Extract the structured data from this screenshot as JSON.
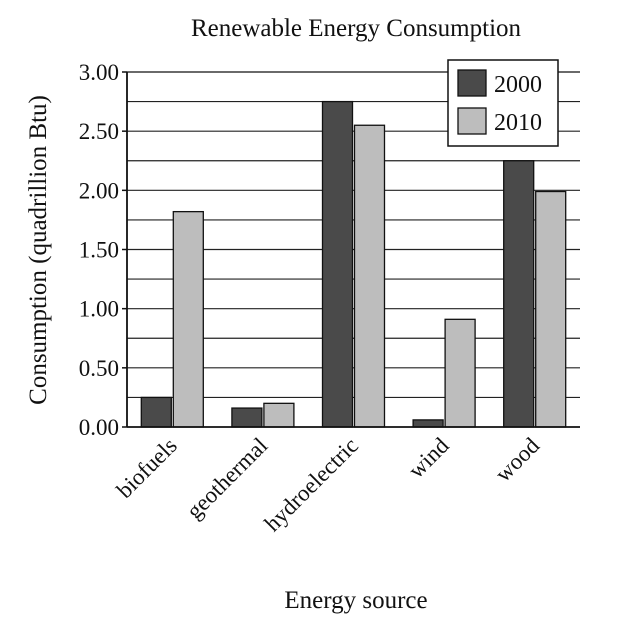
{
  "chart_data": {
    "type": "bar",
    "title": "Renewable Energy Consumption",
    "xlabel": "Energy source",
    "ylabel": "Consumption (quadrillion Btu)",
    "categories": [
      "biofuels",
      "geothermal",
      "hydroelectric",
      "wind",
      "wood"
    ],
    "series": [
      {
        "name": "2000",
        "values": [
          0.25,
          0.16,
          2.75,
          0.06,
          2.25
        ],
        "color": "#4a4a4a"
      },
      {
        "name": "2010",
        "values": [
          1.82,
          0.2,
          2.55,
          0.91,
          1.99
        ],
        "color": "#bdbdbd"
      }
    ],
    "ylim": [
      0,
      3.0
    ],
    "yticks": [
      "0.00",
      "0.50",
      "1.00",
      "1.50",
      "2.00",
      "2.50",
      "3.00"
    ],
    "grid": true,
    "legend": "top-right"
  }
}
